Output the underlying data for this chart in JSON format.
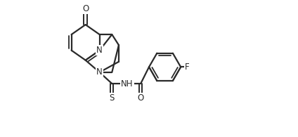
{
  "background_color": "#ffffff",
  "line_color": "#2a2a2a",
  "line_width": 1.6,
  "figsize": [
    4.24,
    1.95
  ],
  "dpi": 100,
  "xlim": [
    0,
    11.5
  ],
  "ylim": [
    0.5,
    9.5
  ]
}
